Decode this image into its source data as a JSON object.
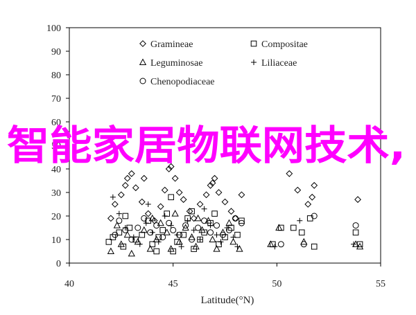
{
  "chart_data": {
    "type": "scatter",
    "xlabel": "Latitude(°N)",
    "ylabel": "",
    "xlim": [
      40,
      55
    ],
    "ylim": [
      0,
      100
    ],
    "x_ticks": [
      40,
      45,
      50,
      55
    ],
    "y_ticks": [
      0,
      10,
      20,
      30,
      40,
      50,
      60,
      70,
      80,
      90,
      100
    ],
    "grid": false,
    "legend_position": "top-left",
    "series": [
      {
        "name": "Gramineae",
        "marker": "diamond",
        "points": [
          [
            42.0,
            19
          ],
          [
            42.2,
            25
          ],
          [
            42.5,
            29
          ],
          [
            42.7,
            33
          ],
          [
            42.8,
            36
          ],
          [
            43.0,
            38
          ],
          [
            43.2,
            32
          ],
          [
            43.5,
            26
          ],
          [
            43.8,
            21
          ],
          [
            44.1,
            18
          ],
          [
            44.4,
            24
          ],
          [
            44.6,
            31
          ],
          [
            44.8,
            40
          ],
          [
            45.1,
            36
          ],
          [
            45.3,
            30
          ],
          [
            45.5,
            27
          ],
          [
            45.8,
            22
          ],
          [
            46.0,
            19
          ],
          [
            46.3,
            25
          ],
          [
            46.6,
            29
          ],
          [
            46.8,
            33
          ],
          [
            47.0,
            36
          ],
          [
            47.2,
            30
          ],
          [
            47.5,
            26
          ],
          [
            47.8,
            22
          ],
          [
            48.0,
            19
          ],
          [
            48.3,
            29
          ],
          [
            50.6,
            38
          ],
          [
            51.0,
            31
          ],
          [
            51.5,
            25
          ],
          [
            51.8,
            33
          ],
          [
            53.9,
            27
          ],
          [
            43.6,
            36
          ],
          [
            44.9,
            41
          ],
          [
            46.9,
            34
          ],
          [
            51.7,
            28
          ]
        ]
      },
      {
        "name": "Compositae",
        "marker": "square",
        "points": [
          [
            41.9,
            9
          ],
          [
            42.1,
            11
          ],
          [
            42.4,
            13
          ],
          [
            42.6,
            7
          ],
          [
            42.9,
            15
          ],
          [
            43.2,
            10
          ],
          [
            43.5,
            12
          ],
          [
            43.8,
            18
          ],
          [
            44.0,
            8
          ],
          [
            44.3,
            11
          ],
          [
            44.5,
            14
          ],
          [
            44.7,
            21
          ],
          [
            44.9,
            28
          ],
          [
            45.0,
            5
          ],
          [
            45.2,
            9
          ],
          [
            45.5,
            12
          ],
          [
            45.7,
            19
          ],
          [
            46.0,
            6
          ],
          [
            46.3,
            10
          ],
          [
            46.5,
            13
          ],
          [
            46.8,
            17
          ],
          [
            47.0,
            21
          ],
          [
            47.2,
            8
          ],
          [
            47.5,
            11
          ],
          [
            47.8,
            15
          ],
          [
            48.1,
            12
          ],
          [
            48.3,
            18
          ],
          [
            49.8,
            8
          ],
          [
            50.2,
            15
          ],
          [
            50.8,
            15
          ],
          [
            51.2,
            13
          ],
          [
            51.6,
            19
          ],
          [
            51.8,
            7
          ],
          [
            53.8,
            13
          ],
          [
            54.0,
            8
          ],
          [
            42.7,
            20
          ],
          [
            44.2,
            5
          ],
          [
            45.9,
            22
          ]
        ]
      },
      {
        "name": "Leguminosae",
        "marker": "triangle",
        "points": [
          [
            42.0,
            5
          ],
          [
            42.3,
            16
          ],
          [
            42.5,
            8
          ],
          [
            42.8,
            12
          ],
          [
            43.0,
            4
          ],
          [
            43.3,
            9
          ],
          [
            43.6,
            14
          ],
          [
            43.9,
            6
          ],
          [
            44.2,
            10
          ],
          [
            44.4,
            17
          ],
          [
            44.7,
            13
          ],
          [
            44.9,
            6
          ],
          [
            45.1,
            21
          ],
          [
            45.3,
            9
          ],
          [
            45.6,
            15
          ],
          [
            45.9,
            11
          ],
          [
            46.1,
            7
          ],
          [
            46.4,
            14
          ],
          [
            46.7,
            18
          ],
          [
            46.9,
            10
          ],
          [
            47.1,
            6
          ],
          [
            47.4,
            13
          ],
          [
            47.7,
            17
          ],
          [
            47.9,
            9
          ],
          [
            48.2,
            6
          ],
          [
            49.7,
            8
          ],
          [
            50.1,
            15
          ],
          [
            51.3,
            9
          ],
          [
            53.8,
            8
          ],
          [
            54.0,
            7
          ],
          [
            46.2,
            19
          ],
          [
            44.0,
            19
          ]
        ]
      },
      {
        "name": "Liliaceae",
        "marker": "plus",
        "points": [
          [
            42.1,
            28
          ],
          [
            42.4,
            21
          ],
          [
            42.7,
            15
          ],
          [
            43.1,
            11
          ],
          [
            43.4,
            8
          ],
          [
            43.7,
            17
          ],
          [
            44.0,
            13
          ],
          [
            44.3,
            9
          ],
          [
            44.6,
            20
          ],
          [
            44.9,
            16
          ],
          [
            45.2,
            12
          ],
          [
            45.4,
            7
          ],
          [
            45.7,
            18
          ],
          [
            46.0,
            14
          ],
          [
            46.3,
            10
          ],
          [
            46.5,
            23
          ],
          [
            46.8,
            16
          ],
          [
            47.1,
            12
          ],
          [
            47.3,
            9
          ],
          [
            47.6,
            15
          ],
          [
            47.9,
            11
          ],
          [
            48.1,
            7
          ],
          [
            49.9,
            7
          ],
          [
            51.1,
            18
          ],
          [
            53.7,
            8
          ],
          [
            43.8,
            25
          ]
        ]
      },
      {
        "name": "Chenopodiaceae",
        "marker": "circle",
        "points": [
          [
            42.2,
            12
          ],
          [
            42.4,
            18
          ],
          [
            42.7,
            14
          ],
          [
            43.0,
            10
          ],
          [
            43.3,
            15
          ],
          [
            43.6,
            19
          ],
          [
            43.9,
            13
          ],
          [
            44.2,
            16
          ],
          [
            44.5,
            11
          ],
          [
            44.8,
            17
          ],
          [
            45.0,
            14
          ],
          [
            45.3,
            12
          ],
          [
            45.6,
            16
          ],
          [
            45.9,
            10
          ],
          [
            46.2,
            15
          ],
          [
            46.5,
            18
          ],
          [
            46.8,
            13
          ],
          [
            47.1,
            16
          ],
          [
            47.4,
            12
          ],
          [
            47.7,
            14
          ],
          [
            48.0,
            19
          ],
          [
            48.3,
            17
          ],
          [
            50.2,
            8
          ],
          [
            51.3,
            8
          ],
          [
            51.8,
            20
          ],
          [
            53.8,
            16
          ]
        ]
      }
    ],
    "overlay_text": "智能家居物联网技术,",
    "overlay_color": "#ff00ff"
  }
}
